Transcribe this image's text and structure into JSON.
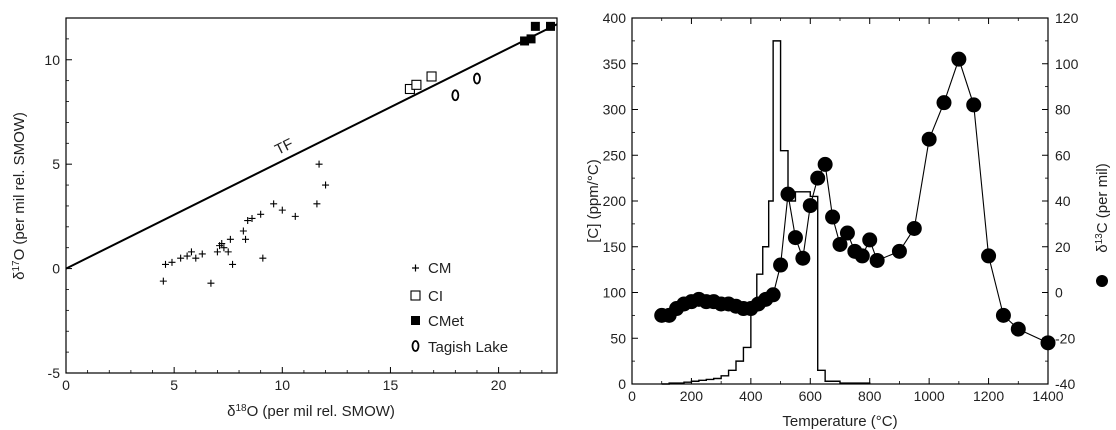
{
  "chart_data": [
    {
      "type": "scatter",
      "xlabel_main": "δ",
      "xlabel_sup": "18",
      "xlabel_rest": "O (per mil rel. SMOW)",
      "ylabel_main": "δ",
      "ylabel_sup": "17",
      "ylabel_rest": "O (per mil rel. SMOW)",
      "xlim": [
        0,
        22.7
      ],
      "ylim": [
        -5,
        12
      ],
      "x_ticks": [
        0,
        5,
        10,
        15,
        20
      ],
      "y_ticks": [
        -5,
        0,
        5,
        10
      ],
      "line": {
        "label": "TF",
        "x": [
          0,
          22.7
        ],
        "y": [
          0,
          11.7
        ]
      },
      "series": [
        {
          "name": "CM",
          "marker": "plus",
          "points": [
            [
              4.5,
              -0.6
            ],
            [
              4.6,
              0.2
            ],
            [
              4.9,
              0.3
            ],
            [
              5.3,
              0.5
            ],
            [
              5.6,
              0.6
            ],
            [
              5.8,
              0.8
            ],
            [
              6.0,
              0.5
            ],
            [
              6.3,
              0.7
            ],
            [
              6.7,
              -0.7
            ],
            [
              7.0,
              0.8
            ],
            [
              7.1,
              1.1
            ],
            [
              7.2,
              1.2
            ],
            [
              7.3,
              1.0
            ],
            [
              7.5,
              0.8
            ],
            [
              7.6,
              1.4
            ],
            [
              7.7,
              0.2
            ],
            [
              8.2,
              1.8
            ],
            [
              8.3,
              1.4
            ],
            [
              8.4,
              2.3
            ],
            [
              8.6,
              2.4
            ],
            [
              9.0,
              2.6
            ],
            [
              9.1,
              0.5
            ],
            [
              9.6,
              3.1
            ],
            [
              10.0,
              2.8
            ],
            [
              10.6,
              2.5
            ],
            [
              11.6,
              3.1
            ],
            [
              11.7,
              5.0
            ],
            [
              12.0,
              4.0
            ]
          ]
        },
        {
          "name": "CI",
          "marker": "open-square",
          "points": [
            [
              15.9,
              8.6
            ],
            [
              16.2,
              8.8
            ],
            [
              16.9,
              9.2
            ]
          ]
        },
        {
          "name": "CMet",
          "marker": "filled-square",
          "points": [
            [
              21.2,
              10.9
            ],
            [
              21.5,
              11.0
            ],
            [
              21.7,
              11.6
            ],
            [
              22.4,
              11.6
            ]
          ]
        },
        {
          "name": "Tagish Lake",
          "marker": "open-oval",
          "points": [
            [
              18.0,
              8.3
            ],
            [
              19.0,
              9.1
            ]
          ]
        }
      ]
    },
    {
      "type": "line",
      "xlabel": "Temperature (°C)",
      "ylabel_left": "[C] (ppm/°C)",
      "ylabel_right_main": "δ",
      "ylabel_right_sup": "13",
      "ylabel_right_rest": "C (per mil)",
      "xlim": [
        0,
        1400
      ],
      "ylim_left": [
        0,
        400
      ],
      "ylim_right": [
        -40,
        120
      ],
      "x_ticks": [
        0,
        200,
        400,
        600,
        800,
        1000,
        1200,
        1400
      ],
      "y_ticks_left": [
        0,
        50,
        100,
        150,
        200,
        250,
        300,
        350,
        400
      ],
      "y_ticks_right": [
        -40,
        -20,
        0,
        20,
        40,
        60,
        80,
        100,
        120
      ],
      "step_series": {
        "name": "[C]",
        "edges": [
          100,
          125,
          150,
          175,
          200,
          225,
          250,
          275,
          300,
          325,
          350,
          375,
          400,
          420,
          440,
          460,
          475,
          500,
          525,
          550,
          575,
          600,
          625,
          650,
          700,
          750,
          800
        ],
        "values": [
          0,
          1,
          1,
          2,
          3,
          4,
          5,
          6,
          9,
          15,
          25,
          40,
          80,
          120,
          150,
          200,
          375,
          255,
          200,
          210,
          210,
          205,
          15,
          3,
          1,
          1
        ]
      },
      "dot_series": {
        "name": "δ13C",
        "points": [
          [
            100,
            -10
          ],
          [
            125,
            -10
          ],
          [
            150,
            -7
          ],
          [
            175,
            -5
          ],
          [
            200,
            -4
          ],
          [
            225,
            -3
          ],
          [
            250,
            -4
          ],
          [
            275,
            -4
          ],
          [
            300,
            -5
          ],
          [
            325,
            -5
          ],
          [
            350,
            -6
          ],
          [
            375,
            -7
          ],
          [
            400,
            -7
          ],
          [
            425,
            -5
          ],
          [
            450,
            -3
          ],
          [
            475,
            -1
          ],
          [
            500,
            12
          ],
          [
            525,
            43
          ],
          [
            550,
            24
          ],
          [
            575,
            15
          ],
          [
            600,
            38
          ],
          [
            625,
            50
          ],
          [
            650,
            56
          ],
          [
            675,
            33
          ],
          [
            700,
            21
          ],
          [
            725,
            26
          ],
          [
            750,
            18
          ],
          [
            775,
            16
          ],
          [
            800,
            23
          ],
          [
            825,
            14
          ],
          [
            900,
            18
          ],
          [
            950,
            28
          ],
          [
            1000,
            67
          ],
          [
            1050,
            83
          ],
          [
            1100,
            102
          ],
          [
            1150,
            82
          ],
          [
            1200,
            16
          ],
          [
            1250,
            -10
          ],
          [
            1300,
            -16
          ],
          [
            1400,
            -22
          ]
        ]
      }
    }
  ]
}
